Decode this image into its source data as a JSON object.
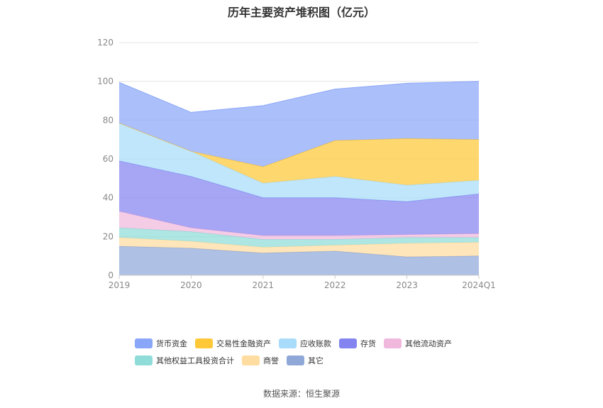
{
  "title": "历年主要资产堆积图（亿元）",
  "source": "数据来源：恒生聚源",
  "chart_data": {
    "type": "area",
    "stacked": true,
    "categories": [
      "2019",
      "2020",
      "2021",
      "2022",
      "2023",
      "2024Q1"
    ],
    "ylim": [
      0,
      120
    ],
    "yticks": [
      0,
      20,
      40,
      60,
      80,
      100,
      120
    ],
    "grid": true,
    "legend_position": "bottom",
    "series": [
      {
        "name": "其它",
        "color": "#8fa8d8",
        "values": [
          15,
          14,
          11.5,
          12.5,
          9.5,
          10
        ]
      },
      {
        "name": "商誉",
        "color": "#ffdca0",
        "values": [
          4.5,
          3.5,
          3,
          3,
          7,
          7
        ]
      },
      {
        "name": "其他权益工具投资合计",
        "color": "#8fdcd8",
        "values": [
          5,
          5,
          4,
          3,
          3,
          2.5
        ]
      },
      {
        "name": "其他流动资产",
        "color": "#f0b8dc",
        "values": [
          8.5,
          2,
          2,
          2,
          1.5,
          2
        ]
      },
      {
        "name": "存货",
        "color": "#8484f0",
        "values": [
          26,
          26.5,
          19.5,
          19.5,
          17,
          20.5
        ]
      },
      {
        "name": "应收账款",
        "color": "#a8dcfa",
        "values": [
          19.5,
          13,
          7.5,
          11,
          8.5,
          7
        ]
      },
      {
        "name": "交易性金融资产",
        "color": "#ffc838",
        "values": [
          0,
          0,
          8.5,
          18.5,
          24,
          21
        ]
      },
      {
        "name": "货币资金",
        "color": "#8aa6f8",
        "values": [
          21,
          20,
          31.5,
          26.5,
          28.5,
          30
        ]
      }
    ]
  },
  "legend": {
    "rows": [
      [
        {
          "label": "货币资金",
          "color": "#8aa6f8"
        },
        {
          "label": "交易性金融资产",
          "color": "#ffc838"
        },
        {
          "label": "应收账款",
          "color": "#a8dcfa"
        },
        {
          "label": "存货",
          "color": "#8484f0"
        },
        {
          "label": "其他流动资产",
          "color": "#f0b8dc"
        }
      ],
      [
        {
          "label": "其他权益工具投资合计",
          "color": "#8fdcd8"
        },
        {
          "label": "商誉",
          "color": "#ffdca0"
        },
        {
          "label": "其它",
          "color": "#8fa8d8"
        }
      ]
    ]
  }
}
